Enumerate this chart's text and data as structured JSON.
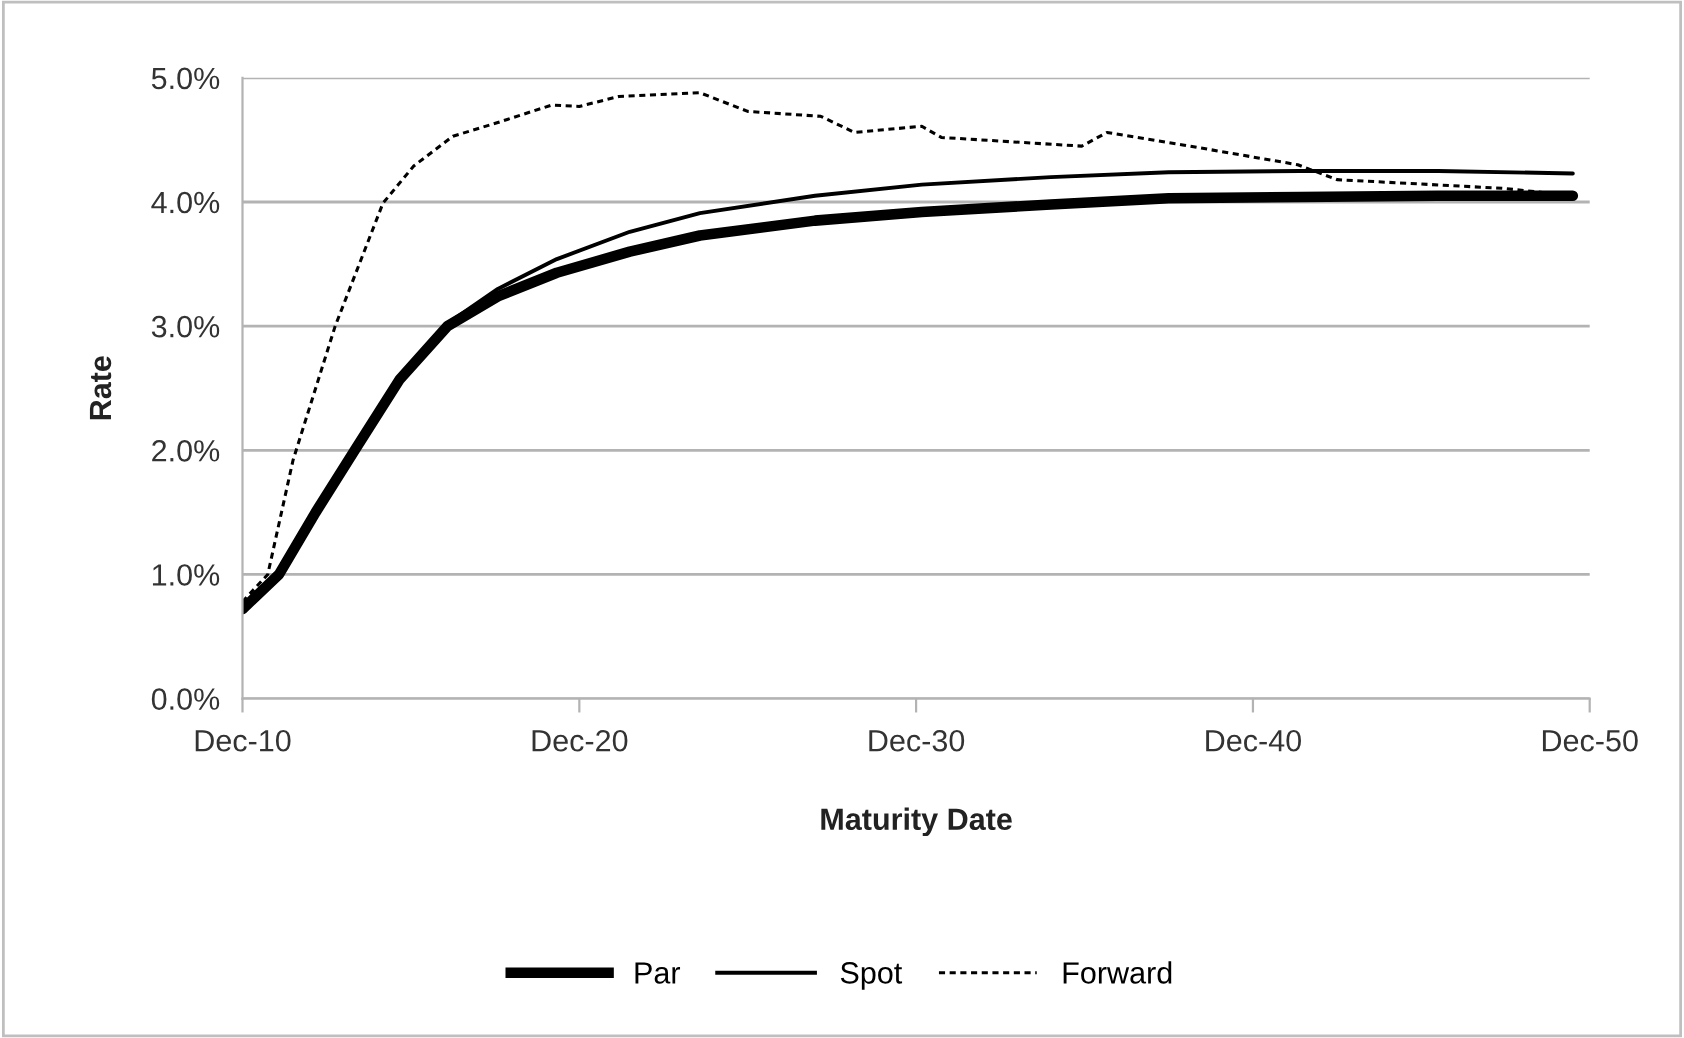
{
  "chart_data": {
    "type": "line",
    "xlabel": "Maturity Date",
    "ylabel": "Rate",
    "xlim": [
      "2010-12",
      "2050-12"
    ],
    "xticks": [
      {
        "value": "2010-12",
        "label": "Dec-10"
      },
      {
        "value": "2020-12",
        "label": "Dec-20"
      },
      {
        "value": "2030-12",
        "label": "Dec-30"
      },
      {
        "value": "2040-12",
        "label": "Dec-40"
      },
      {
        "value": "2050-12",
        "label": "Dec-50"
      }
    ],
    "ylim": [
      0,
      5
    ],
    "yticks": [
      {
        "value": 0,
        "label": "0.0%"
      },
      {
        "value": 1,
        "label": "1.0%"
      },
      {
        "value": 2,
        "label": "2.0%"
      },
      {
        "value": 3,
        "label": "3.0%"
      },
      {
        "value": 4,
        "label": "4.0%"
      },
      {
        "value": 5,
        "label": "5.0%"
      }
    ],
    "grid": "y",
    "legend": "bottom",
    "marker": "none",
    "series": [
      {
        "name": "Par",
        "color": "#000000",
        "line_style": "solid",
        "x": [
          "2010-12",
          "2012-01",
          "2013-02",
          "2014-04",
          "2015-08",
          "2017-01",
          "2018-07",
          "2020-04",
          "2022-06",
          "2024-07",
          "2027-12",
          "2031-02",
          "2034-12",
          "2038-06",
          "2042-05",
          "2046-06",
          "2050-06"
        ],
        "values": [
          0.72,
          1.0,
          1.5,
          2.0,
          2.57,
          3.0,
          3.24,
          3.43,
          3.6,
          3.73,
          3.85,
          3.92,
          3.98,
          4.03,
          4.04,
          4.05,
          4.05
        ]
      },
      {
        "name": "Spot",
        "color": "#000000",
        "line_style": "solid",
        "x": [
          "2010-12",
          "2012-01",
          "2013-02",
          "2014-04",
          "2015-08",
          "2017-01",
          "2018-07",
          "2020-04",
          "2022-06",
          "2024-07",
          "2027-12",
          "2031-02",
          "2034-12",
          "2038-06",
          "2042-05",
          "2046-06",
          "2050-06"
        ],
        "values": [
          0.72,
          1.0,
          1.5,
          2.0,
          2.58,
          3.02,
          3.3,
          3.54,
          3.76,
          3.91,
          4.05,
          4.14,
          4.2,
          4.24,
          4.25,
          4.25,
          4.23
        ]
      },
      {
        "name": "Forward",
        "color": "#000000",
        "line_style": "dotted",
        "x": [
          "2010-12",
          "2011-09",
          "2012-06",
          "2013-09",
          "2015-02",
          "2016-01",
          "2017-03",
          "2018-07",
          "2020-02",
          "2020-12",
          "2022-02",
          "2024-07",
          "2025-12",
          "2028-02",
          "2029-02",
          "2031-02",
          "2031-09",
          "2035-11",
          "2036-08",
          "2038-11",
          "2042-04",
          "2043-06",
          "2048-05",
          "2050-07"
        ],
        "values": [
          0.78,
          1.0,
          1.92,
          3.0,
          3.99,
          4.29,
          4.53,
          4.64,
          4.78,
          4.77,
          4.85,
          4.88,
          4.73,
          4.69,
          4.56,
          4.61,
          4.52,
          4.45,
          4.56,
          4.46,
          4.3,
          4.18,
          4.11,
          4.05
        ]
      }
    ]
  }
}
